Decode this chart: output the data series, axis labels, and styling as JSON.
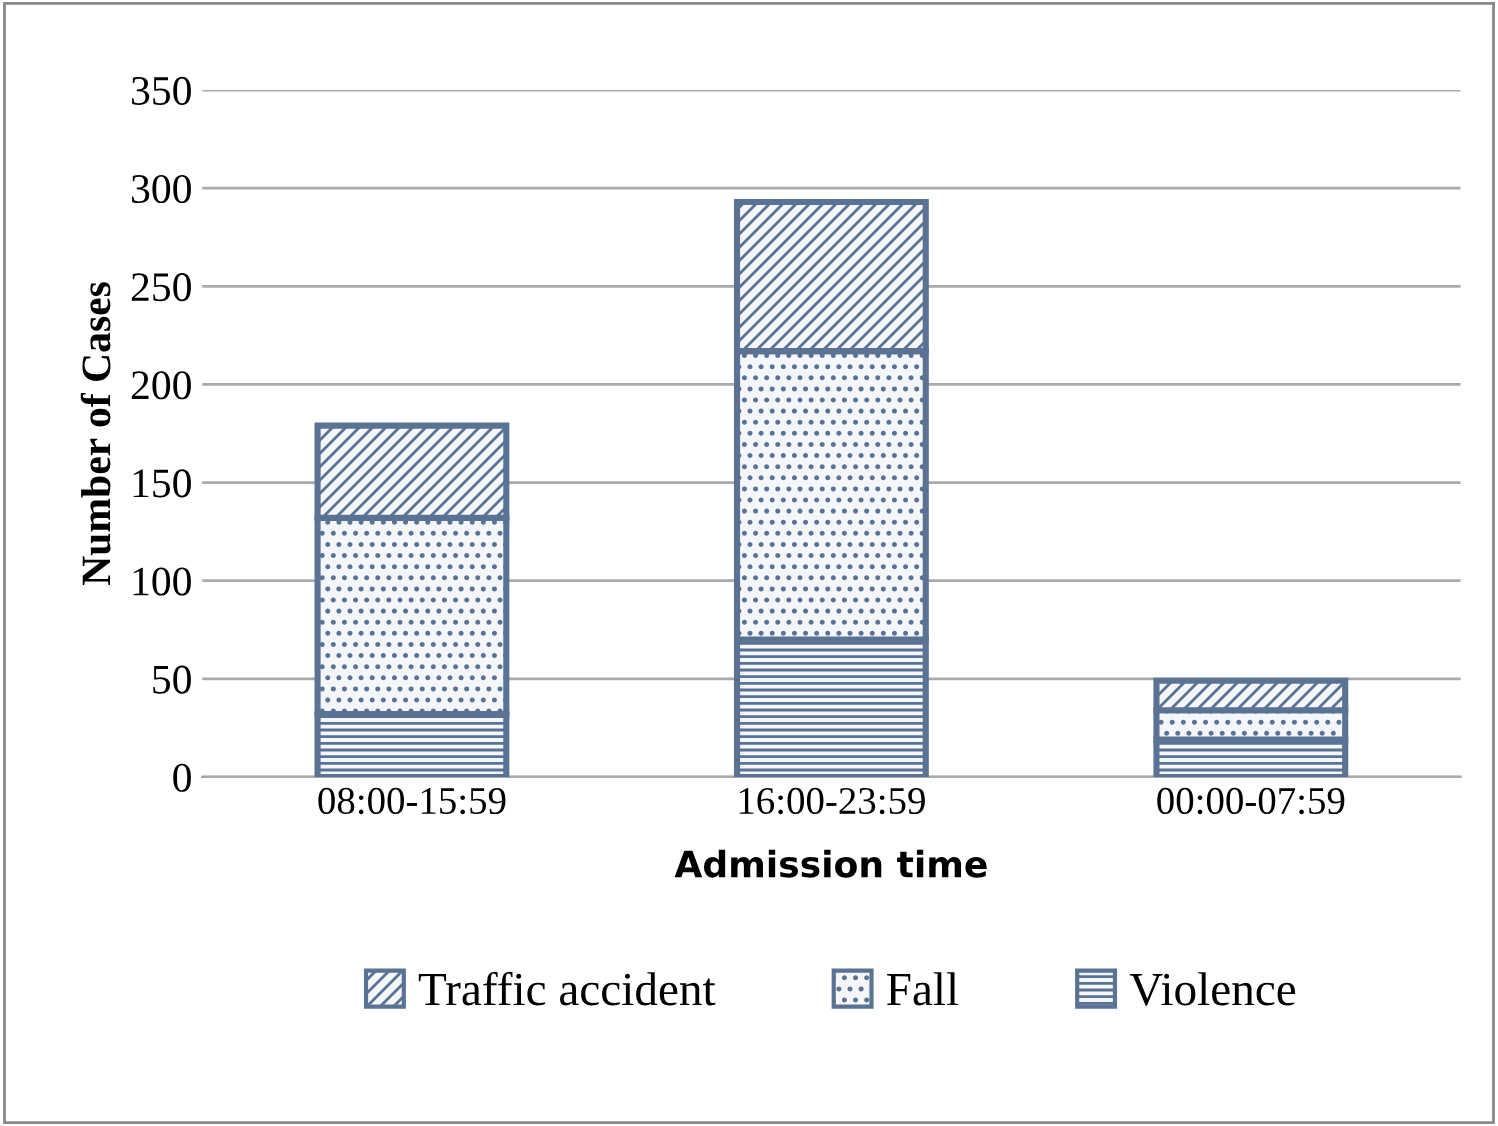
{
  "chart_data": {
    "type": "bar",
    "stacked": true,
    "xlabel": "Admission time",
    "ylabel": "Number of Cases",
    "categories": [
      "08:00-15:59",
      "16:00-23:59",
      "00:00-07:59"
    ],
    "series": [
      {
        "name": "Violence",
        "color": "#5a7294",
        "values": [
          32,
          70,
          19
        ]
      },
      {
        "name": "Fall",
        "color": "#5a7294",
        "values": [
          100,
          147,
          15
        ]
      },
      {
        "name": "Traffic accident",
        "color": "#5a7294",
        "values": [
          47,
          76,
          15
        ]
      }
    ],
    "ylim": [
      0,
      350
    ],
    "yticks": [
      0,
      50,
      100,
      150,
      200,
      250,
      300,
      350
    ],
    "grid": "y",
    "legend": "bottom"
  }
}
